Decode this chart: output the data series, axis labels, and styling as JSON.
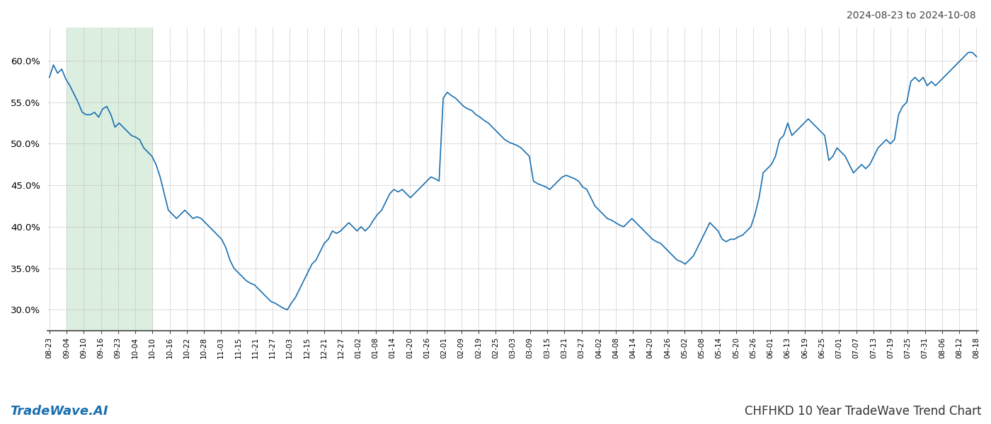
{
  "title_top_right": "2024-08-23 to 2024-10-08",
  "title_bottom": "CHFHKD 10 Year TradeWave Trend Chart",
  "watermark_left": "TradeWave.AI",
  "line_color": "#1a6faf",
  "line_width": 1.2,
  "bg_color": "#ffffff",
  "grid_color": "#bbbbbb",
  "highlight_color": "#dceee0",
  "ylim": [
    27.5,
    64.0
  ],
  "yticks": [
    30.0,
    35.0,
    40.0,
    45.0,
    50.0,
    55.0,
    60.0
  ],
  "x_labels": [
    "08-23",
    "09-04",
    "09-10",
    "09-16",
    "09-23",
    "10-04",
    "10-10",
    "10-16",
    "10-22",
    "10-28",
    "11-03",
    "11-15",
    "11-21",
    "11-27",
    "12-03",
    "12-15",
    "12-21",
    "12-27",
    "01-02",
    "01-08",
    "01-14",
    "01-20",
    "01-26",
    "02-01",
    "02-09",
    "02-19",
    "02-25",
    "03-03",
    "03-09",
    "03-15",
    "03-21",
    "03-27",
    "04-02",
    "04-08",
    "04-14",
    "04-20",
    "04-26",
    "05-02",
    "05-08",
    "05-14",
    "05-20",
    "05-26",
    "06-01",
    "06-13",
    "06-19",
    "06-25",
    "07-01",
    "07-07",
    "07-13",
    "07-19",
    "07-25",
    "07-31",
    "08-06",
    "08-12",
    "08-18"
  ],
  "values": [
    58.0,
    59.5,
    58.5,
    59.0,
    57.8,
    57.0,
    56.0,
    55.0,
    53.8,
    53.5,
    53.5,
    53.8,
    53.2,
    54.2,
    54.5,
    53.5,
    52.0,
    52.5,
    52.0,
    51.5,
    51.0,
    50.8,
    50.5,
    49.5,
    49.0,
    48.5,
    47.5,
    46.0,
    44.0,
    42.0,
    41.5,
    41.0,
    41.5,
    42.0,
    41.5,
    41.0,
    41.2,
    41.0,
    40.5,
    40.0,
    39.5,
    39.0,
    38.5,
    37.5,
    36.0,
    35.0,
    34.5,
    34.0,
    33.5,
    33.2,
    33.0,
    32.5,
    32.0,
    31.5,
    31.0,
    30.8,
    30.5,
    30.2,
    30.0,
    30.8,
    31.5,
    32.5,
    33.5,
    34.5,
    35.5,
    36.0,
    37.0,
    38.0,
    38.5,
    39.5,
    39.2,
    39.5,
    40.0,
    40.5,
    40.0,
    39.5,
    40.0,
    39.5,
    40.0,
    40.8,
    41.5,
    42.0,
    43.0,
    44.0,
    44.5,
    44.2,
    44.5,
    44.0,
    43.5,
    44.0,
    44.5,
    45.0,
    45.5,
    46.0,
    45.8,
    45.5,
    55.5,
    56.2,
    55.8,
    55.5,
    55.0,
    54.5,
    54.2,
    54.0,
    53.5,
    53.2,
    52.8,
    52.5,
    52.0,
    51.5,
    51.0,
    50.5,
    50.2,
    50.0,
    49.8,
    49.5,
    49.0,
    48.5,
    45.5,
    45.2,
    45.0,
    44.8,
    44.5,
    45.0,
    45.5,
    46.0,
    46.2,
    46.0,
    45.8,
    45.5,
    44.8,
    44.5,
    43.5,
    42.5,
    42.0,
    41.5,
    41.0,
    40.8,
    40.5,
    40.2,
    40.0,
    40.5,
    41.0,
    40.5,
    40.0,
    39.5,
    39.0,
    38.5,
    38.2,
    38.0,
    37.5,
    37.0,
    36.5,
    36.0,
    35.8,
    35.5,
    36.0,
    36.5,
    37.5,
    38.5,
    39.5,
    40.5,
    40.0,
    39.5,
    38.5,
    38.2,
    38.5,
    38.5,
    38.8,
    39.0,
    39.5,
    40.0,
    41.5,
    43.5,
    46.5,
    47.0,
    47.5,
    48.5,
    50.5,
    51.0,
    52.5,
    51.0,
    51.5,
    52.0,
    52.5,
    53.0,
    52.5,
    52.0,
    51.5,
    51.0,
    48.0,
    48.5,
    49.5,
    49.0,
    48.5,
    47.5,
    46.5,
    47.0,
    47.5,
    47.0,
    47.5,
    48.5,
    49.5,
    50.0,
    50.5,
    50.0,
    50.5,
    53.5,
    54.5,
    55.0,
    57.5,
    58.0,
    57.5,
    58.0,
    57.0,
    57.5,
    57.0,
    57.5,
    58.0,
    58.5,
    59.0,
    59.5,
    60.0,
    60.5,
    61.0,
    61.0,
    60.5
  ],
  "highlight_xstart_idx": 1,
  "highlight_xend_idx": 14
}
